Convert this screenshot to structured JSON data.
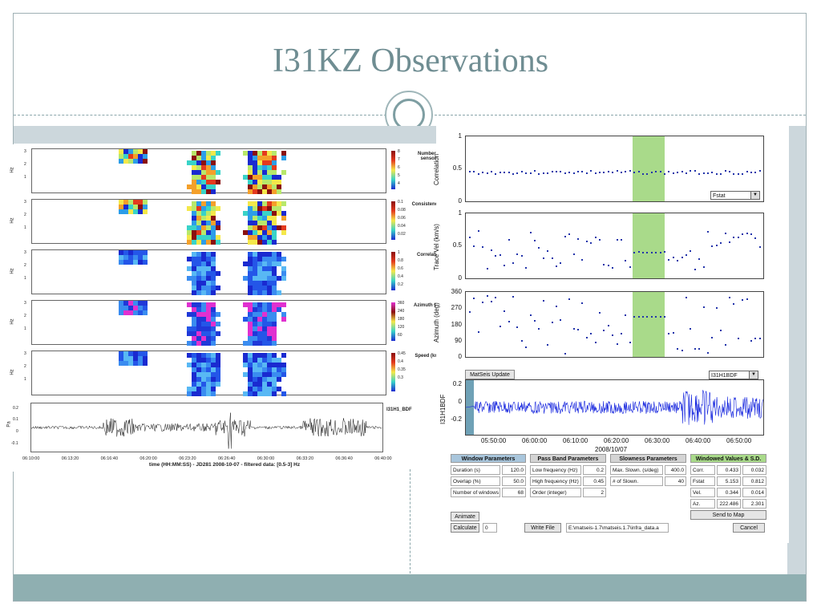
{
  "slide": {
    "title": "I31KZ Observations"
  },
  "left_figure": {
    "y_axis_label": "Hz",
    "y_ticks": [
      "3",
      "2",
      "1"
    ],
    "panels": [
      {
        "label": "Number of sensors",
        "colorbar_ticks": [
          "8",
          "7",
          "6",
          "5",
          "4"
        ]
      },
      {
        "label": "Consistency (s)",
        "colorbar_ticks": [
          "0.1",
          "0.08",
          "0.06",
          "0.04",
          "0.02"
        ]
      },
      {
        "label": "Correlation",
        "colorbar_ticks": [
          "1",
          "0.8",
          "0.6",
          "0.4",
          "0.2"
        ]
      },
      {
        "label": "Azimuth (deg)",
        "colorbar_ticks": [
          "360",
          "240",
          "180",
          "120",
          "60"
        ]
      },
      {
        "label": "Speed (km/s)",
        "colorbar_ticks": [
          "0.45",
          "0.4",
          "0.35",
          "0.3"
        ]
      }
    ],
    "waveform": {
      "channel": "I31H1_BDF",
      "y_label": "Pa",
      "y_ticks": [
        "0.2",
        "0.1",
        "0",
        "-0.1"
      ]
    },
    "x_ticks": [
      "06:10:00",
      "06:13:20",
      "06:16:40",
      "06:20:00",
      "06:23:20",
      "06:26:40",
      "06:30:00",
      "06:33:20",
      "06:36:40",
      "06:40:00"
    ],
    "x_label": "time (HH:MM:SS) - JD281 2008-10-07 - filtered data: [0.5-3] Hz"
  },
  "app": {
    "correlation": {
      "y_label": "Correlation",
      "y_ticks": [
        "1",
        "0.5",
        "0"
      ],
      "dropdown": "Fstat"
    },
    "trace_vel": {
      "y_label": "Trace Vel (km/s)",
      "y_ticks": [
        "1",
        "0.5",
        "0"
      ]
    },
    "azimuth": {
      "y_label": "Azimuth (deg)",
      "y_ticks": [
        "360",
        "270",
        "180",
        "90",
        "0"
      ]
    },
    "waveform": {
      "y_label": "I31H1BDF",
      "y_ticks": [
        "0.2",
        "0",
        "-0.2"
      ],
      "update_button": "MatSeis Update",
      "channel_dropdown": "I31H1BDF"
    },
    "x_ticks": [
      "05:50:00",
      "06:00:00",
      "06:10:00",
      "06:20:00",
      "06:30:00",
      "06:40:00",
      "06:50:00"
    ],
    "x_date": "2008/10/07",
    "window_params": {
      "header": "Window Parameters",
      "rows": [
        {
          "label": "Duration (s)",
          "value": "120.0"
        },
        {
          "label": "Overlap (%)",
          "value": "50.0"
        },
        {
          "label": "Number of windows",
          "value": "68"
        }
      ]
    },
    "pass_band": {
      "header": "Pass Band Parameters",
      "rows": [
        {
          "label": "Low frequency (Hz)",
          "value": "0.2"
        },
        {
          "label": "High frequency (Hz)",
          "value": "0.45"
        },
        {
          "label": "Order (integer)",
          "value": "2"
        }
      ]
    },
    "slowness": {
      "header": "Slowness Parameters",
      "rows": [
        {
          "label": "Max. Slown. (s/deg)",
          "value": "400.0"
        },
        {
          "label": "# of Slown.",
          "value": "40"
        }
      ]
    },
    "windowed": {
      "header": "Windowed Values & S.D.",
      "rows": [
        {
          "label": "Corr.",
          "value": "0.433",
          "sd": "0.032"
        },
        {
          "label": "Fstat",
          "value": "5.153",
          "sd": "0.812"
        },
        {
          "label": "Vel.",
          "value": "0.344",
          "sd": "0.014"
        },
        {
          "label": "Az.",
          "value": "222.486",
          "sd": "2.301"
        }
      ],
      "send_button": "Send to Map"
    },
    "animate_button": "Animate",
    "calculate_button": "Calculate",
    "calculate_value": "0",
    "write_file_button": "Write File",
    "file_path": "E:\\matseis-1.7\\matseis.1.7\\infra_data.a",
    "cancel_button": "Cancel"
  }
}
